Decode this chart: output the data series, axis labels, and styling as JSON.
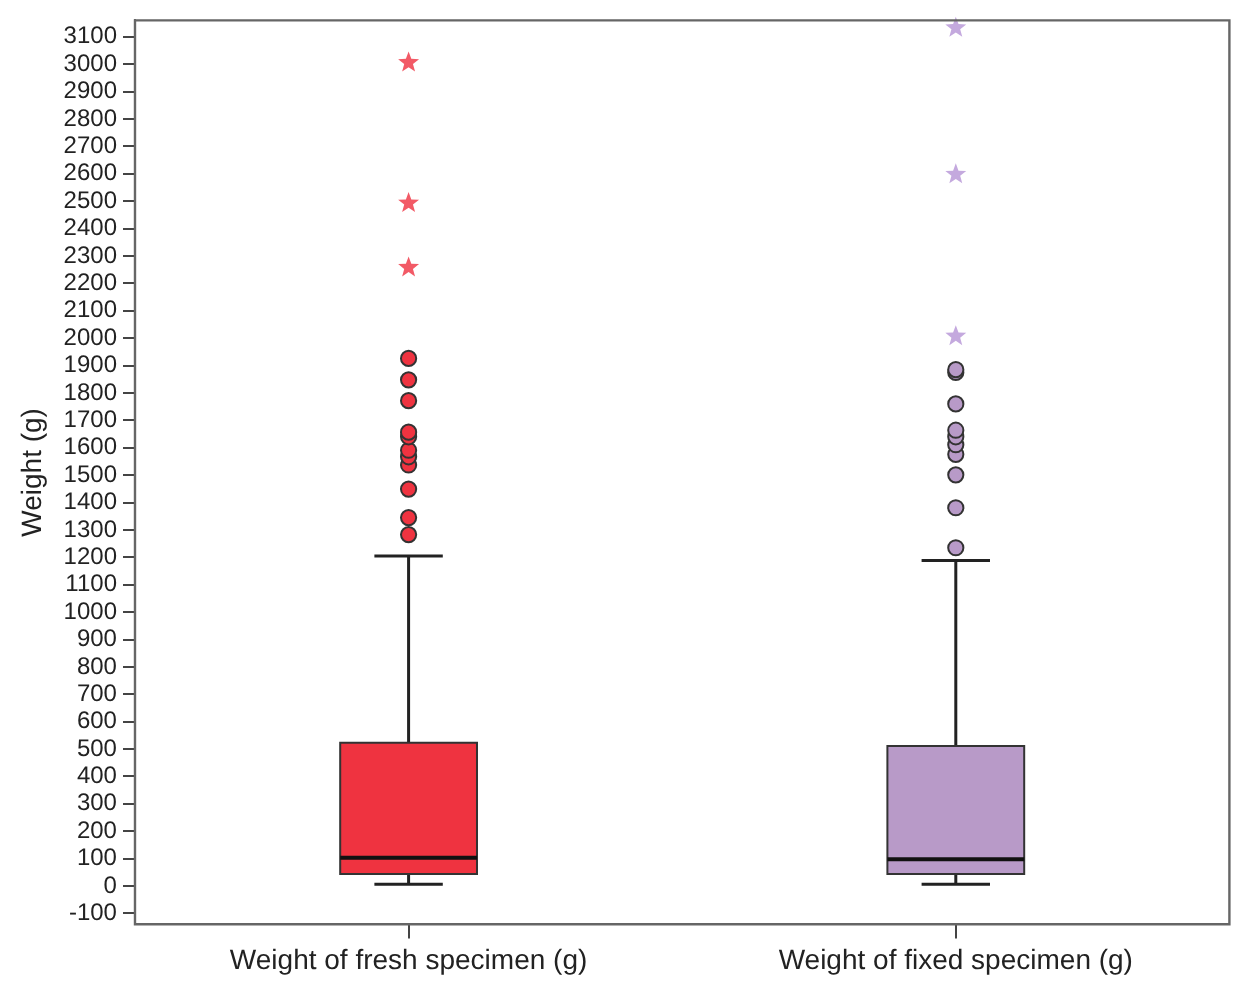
{
  "chart_data": {
    "type": "box",
    "ylabel": "Weight (g)",
    "categories": [
      "Weight of fresh specimen (g)",
      "Weight of fixed specimen (g)"
    ],
    "colors": [
      "#ef3340",
      "#b89ac8"
    ],
    "marker": "circle",
    "grid": false,
    "legend": false,
    "ylim": [
      -140,
      3160
    ],
    "yticks": [
      -100,
      0,
      100,
      200,
      300,
      400,
      500,
      600,
      700,
      800,
      900,
      1000,
      1100,
      1200,
      1300,
      1400,
      1500,
      1600,
      1700,
      1800,
      1900,
      2000,
      2100,
      2200,
      2300,
      2400,
      2500,
      2600,
      2700,
      2800,
      2900,
      3000,
      3100
    ],
    "boxes": [
      {
        "low": 7,
        "q1": 44,
        "median": 103,
        "q3": 523,
        "high": 1205,
        "outliers": [
          1283,
          1345,
          1449,
          1537,
          1567,
          1591,
          1640,
          1657,
          1772,
          1848,
          1926
        ]
      },
      {
        "low": 7,
        "q1": 44,
        "median": 98,
        "q3": 511,
        "high": 1188,
        "outliers": [
          1235,
          1381,
          1501,
          1576,
          1611,
          1640,
          1664,
          1760,
          1875,
          1885
        ]
      }
    ],
    "series": [
      {
        "type": "scatter",
        "marker": "star",
        "color": "#f25a66",
        "x": [
          "Weight of fresh specimen (g)",
          "Weight of fresh specimen (g)",
          "Weight of fresh specimen (g)"
        ],
        "values": [
          2258,
          2493,
          3006
        ]
      },
      {
        "type": "scatter",
        "marker": "star",
        "color": "#c4a9de",
        "x": [
          "Weight of fixed specimen (g)",
          "Weight of fixed specimen (g)",
          "Weight of fixed specimen (g)"
        ],
        "values": [
          2007,
          2598,
          3133
        ]
      }
    ]
  }
}
